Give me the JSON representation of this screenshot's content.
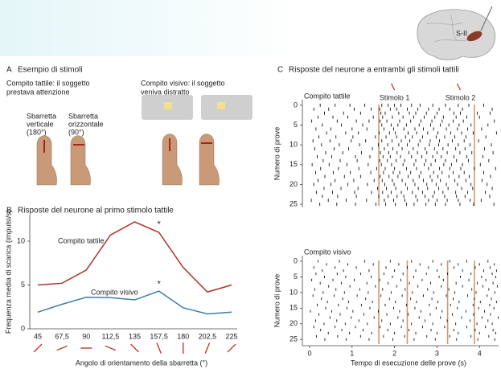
{
  "figure": {
    "panel_a": {
      "letter": "A",
      "title": "Esempio di stimoli",
      "tactile_task": [
        "Compito tattile: il soggetto",
        "prestava attenzione"
      ],
      "visual_task": [
        "Compito visivo: il soggetto",
        "veniva distratto"
      ],
      "vertical_bar": [
        "Sbarretta",
        "verticale",
        "(180°)"
      ],
      "horizontal_bar": [
        "Sbarretta",
        "orizzontale",
        "(90°)"
      ]
    },
    "panel_b": {
      "letter": "B",
      "title": "Risposte del neurone al primo stimolo tattile"
    },
    "panel_c": {
      "letter": "C",
      "title": "Risposte del neurone a entrambi gli stimoli tattili"
    },
    "brain_label": "S-II"
  },
  "chart_data": [
    {
      "type": "line",
      "xlabel": "Angolo di orientamento della sbarretta (°)",
      "ylabel": "Frequenza media di scarica (impulsi/s)",
      "categories": [
        "45",
        "67,5",
        "90",
        "112,5",
        "135",
        "157,5",
        "180",
        "202,5",
        "225"
      ],
      "series": [
        {
          "name": "Compito tattile",
          "color": "#a8332a",
          "values": [
            5,
            5.2,
            6.7,
            10.7,
            12.2,
            11,
            7,
            4.2,
            5
          ]
        },
        {
          "name": "Compito visivo",
          "color": "#3d7fa6",
          "values": [
            1.9,
            2.8,
            3.6,
            3.55,
            3.3,
            4.3,
            2.4,
            1.7,
            1.9
          ]
        }
      ],
      "ylim": [
        0,
        13
      ],
      "yticks": [
        0,
        5,
        10
      ],
      "annotations": [
        {
          "text": "*",
          "category": "157,5",
          "y": 11.9
        },
        {
          "text": "*",
          "category": "157,5",
          "y": 5.1
        }
      ]
    },
    {
      "type": "raster",
      "label": "Compito tattile",
      "ylabel": "Numero di prove",
      "xlim": [
        -0.17,
        4.45
      ],
      "ylim": [
        -1.4,
        25.8
      ],
      "yticks": [
        0,
        5,
        10,
        15,
        20,
        25
      ],
      "stimulus_lines": [
        1.63,
        3.88
      ],
      "annotations": [
        {
          "text": "Stimolo 1",
          "x": 2.0
        },
        {
          "text": "Stimolo 2",
          "x": 3.55
        }
      ],
      "trials": [
        [
          0.25,
          0.6,
          0.95,
          1.3,
          1.7,
          1.85,
          2.0,
          2.15,
          2.4,
          2.6,
          2.9,
          3.2,
          3.5,
          3.75,
          4.1
        ],
        [
          0.1,
          0.45,
          1.05,
          1.45,
          1.65,
          1.9,
          2.05,
          2.3,
          2.55,
          2.8,
          3.05,
          3.3,
          3.6,
          4.3
        ],
        [
          0.35,
          0.8,
          1.2,
          1.68,
          1.78,
          2.1,
          2.35,
          2.5,
          2.75,
          3.0,
          3.4,
          3.55,
          3.95,
          4.25
        ],
        [
          0.2,
          0.55,
          0.9,
          1.5,
          1.72,
          1.95,
          2.2,
          2.45,
          2.7,
          2.95,
          3.15,
          3.45,
          3.7,
          4.0
        ],
        [
          0.05,
          0.65,
          1.1,
          1.4,
          1.66,
          1.82,
          2.12,
          2.38,
          2.62,
          2.88,
          3.12,
          3.38,
          3.62,
          4.35
        ],
        [
          0.3,
          0.75,
          1.25,
          1.7,
          1.92,
          2.08,
          2.28,
          2.58,
          2.85,
          3.08,
          3.28,
          3.52,
          3.8,
          4.2
        ],
        [
          0.15,
          0.5,
          1.0,
          1.35,
          1.75,
          1.98,
          2.22,
          2.48,
          2.68,
          2.92,
          3.22,
          3.48,
          3.72,
          4.05
        ],
        [
          0.4,
          0.85,
          1.15,
          1.64,
          1.88,
          2.02,
          2.32,
          2.52,
          2.78,
          3.02,
          3.32,
          3.58,
          3.85,
          4.4
        ],
        [
          0.22,
          0.62,
          1.02,
          1.55,
          1.8,
          2.05,
          2.26,
          2.42,
          2.66,
          2.98,
          3.18,
          3.42,
          3.68,
          4.15
        ],
        [
          0.08,
          0.48,
          0.98,
          1.32,
          1.7,
          1.94,
          2.16,
          2.36,
          2.6,
          2.84,
          3.06,
          3.36,
          3.64,
          3.98
        ],
        [
          0.28,
          0.7,
          1.18,
          1.62,
          1.84,
          2.1,
          2.3,
          2.56,
          2.82,
          3.04,
          3.26,
          3.5,
          3.78,
          4.28
        ],
        [
          0.12,
          0.58,
          0.92,
          1.48,
          1.76,
          1.96,
          2.18,
          2.44,
          2.72,
          2.94,
          3.14,
          3.44,
          3.66,
          4.12
        ],
        [
          0.38,
          0.78,
          1.22,
          1.67,
          1.86,
          2.06,
          2.34,
          2.54,
          2.76,
          3.0,
          3.24,
          3.54,
          3.82,
          4.32
        ],
        [
          0.18,
          0.52,
          1.08,
          1.42,
          1.73,
          1.9,
          2.14,
          2.4,
          2.64,
          2.9,
          3.1,
          3.4,
          3.7,
          4.08
        ],
        [
          0.32,
          0.72,
          1.12,
          1.65,
          1.83,
          2.04,
          2.24,
          2.5,
          2.74,
          2.96,
          3.2,
          3.46,
          3.74,
          4.22
        ],
        [
          0.06,
          0.46,
          0.88,
          1.38,
          1.69,
          1.93,
          2.2,
          2.46,
          2.7,
          2.86,
          3.16,
          3.34,
          3.6,
          4.02
        ],
        [
          0.26,
          0.68,
          1.16,
          1.58,
          1.78,
          2.0,
          2.28,
          2.52,
          2.8,
          3.06,
          3.3,
          3.56,
          3.88,
          4.38
        ],
        [
          0.14,
          0.56,
          0.96,
          1.44,
          1.74,
          1.97,
          2.12,
          2.38,
          2.62,
          2.92,
          3.12,
          3.38,
          3.64,
          4.1
        ],
        [
          0.36,
          0.82,
          1.2,
          1.66,
          1.87,
          2.08,
          2.32,
          2.58,
          2.84,
          3.02,
          3.28,
          3.52,
          3.76,
          4.26
        ],
        [
          0.2,
          0.6,
          1.04,
          1.52,
          1.71,
          1.95,
          2.18,
          2.44,
          2.68,
          2.88,
          3.08,
          3.42,
          3.68,
          4.06
        ],
        [
          0.1,
          0.5,
          0.9,
          1.36,
          1.77,
          1.99,
          2.26,
          2.48,
          2.76,
          2.98,
          3.22,
          3.48,
          3.8,
          4.18
        ],
        [
          0.34,
          0.74,
          1.14,
          1.6,
          1.81,
          2.03,
          2.3,
          2.56,
          2.78,
          3.04,
          3.26,
          3.58,
          3.84,
          4.3
        ],
        [
          0.16,
          0.54,
          1.06,
          1.46,
          1.72,
          1.92,
          2.16,
          2.42,
          2.66,
          2.94,
          3.14,
          3.44,
          3.72,
          4.14
        ],
        [
          0.3,
          0.66,
          1.1,
          1.63,
          1.85,
          2.06,
          2.22,
          2.5,
          2.72,
          2.9,
          3.18,
          3.46,
          3.66,
          4.24
        ],
        [
          0.04,
          0.44,
          0.86,
          1.34,
          1.76,
          1.98,
          2.24,
          2.54,
          2.8,
          3.0,
          3.24,
          3.5,
          3.78,
          4.04
        ],
        [
          0.24,
          0.64,
          1.08,
          1.56,
          1.79,
          2.02,
          2.28,
          2.46,
          2.74,
          2.96,
          3.2,
          3.54,
          3.86,
          4.34
        ]
      ]
    },
    {
      "type": "raster",
      "label": "Compito visivo",
      "ylabel": "Numero di prove",
      "xlabel": "Tempo di esecuzione delle prove (s)",
      "xlim": [
        -0.17,
        4.45
      ],
      "ylim": [
        -1.8,
        27
      ],
      "yticks": [
        0,
        5,
        10,
        15,
        20,
        25
      ],
      "xticks": [
        0,
        1,
        2,
        3,
        4
      ],
      "stimulus_lines": [
        1.63,
        2.3,
        3.25,
        3.88
      ],
      "trials": [
        [
          0.2,
          0.7,
          1.3,
          1.9,
          2.4,
          2.9,
          3.3,
          3.7,
          4.2
        ],
        [
          0.4,
          0.9,
          1.5,
          2.1,
          2.6,
          3.1,
          3.5,
          4.0,
          4.35
        ],
        [
          0.1,
          0.6,
          1.1,
          1.8,
          2.3,
          2.8,
          3.4,
          3.9,
          4.25
        ],
        [
          0.3,
          0.8,
          1.4,
          2.0,
          2.5,
          3.0,
          3.6,
          4.1,
          4.4
        ],
        [
          0.15,
          0.65,
          1.2,
          1.75,
          2.2,
          2.75,
          3.25,
          3.8,
          4.3
        ],
        [
          0.35,
          0.85,
          1.45,
          1.95,
          2.45,
          3.05,
          3.55,
          4.05,
          4.38
        ],
        [
          0.05,
          0.55,
          1.05,
          1.65,
          2.15,
          2.65,
          3.15,
          3.75,
          4.15
        ],
        [
          0.25,
          0.75,
          1.35,
          1.85,
          2.35,
          2.85,
          3.45,
          3.95,
          4.32
        ],
        [
          0.45,
          0.95,
          1.55,
          2.05,
          2.55,
          3.1,
          3.6,
          4.08,
          4.42
        ],
        [
          0.12,
          0.62,
          1.18,
          1.72,
          2.25,
          2.78,
          3.28,
          3.82,
          4.22
        ],
        [
          0.32,
          0.82,
          1.38,
          1.92,
          2.42,
          2.92,
          3.42,
          3.92,
          4.36
        ],
        [
          0.08,
          0.58,
          1.12,
          1.68,
          2.18,
          2.68,
          3.22,
          3.72,
          4.18
        ],
        [
          0.28,
          0.78,
          1.32,
          1.88,
          2.38,
          2.88,
          3.38,
          3.88,
          4.28
        ],
        [
          0.42,
          0.92,
          1.48,
          2.02,
          2.52,
          3.02,
          3.52,
          4.02,
          4.4
        ],
        [
          0.18,
          0.68,
          1.22,
          1.78,
          2.28,
          2.82,
          3.32,
          3.85,
          4.24
        ],
        [
          0.38,
          0.88,
          1.42,
          1.98,
          2.48,
          2.98,
          3.48,
          3.98,
          4.34
        ],
        [
          0.02,
          0.52,
          1.02,
          1.62,
          2.12,
          2.62,
          3.12,
          3.68,
          4.12
        ],
        [
          0.22,
          0.72,
          1.28,
          1.82,
          2.32,
          2.84,
          3.36,
          3.86,
          4.26
        ],
        [
          0.48,
          0.98,
          1.52,
          2.08,
          2.58,
          3.08,
          3.58,
          4.06,
          4.44
        ],
        [
          0.14,
          0.64,
          1.16,
          1.7,
          2.2,
          2.72,
          3.24,
          3.78,
          4.2
        ],
        [
          0.34,
          0.84,
          1.36,
          1.9,
          2.4,
          2.9,
          3.44,
          3.94,
          4.3
        ],
        [
          0.1,
          0.6,
          1.08,
          1.66,
          2.16,
          2.66,
          3.18,
          3.7,
          4.14
        ],
        [
          0.26,
          0.76,
          1.26,
          1.84,
          2.34,
          2.86,
          3.4,
          3.9,
          4.32
        ],
        [
          0.44,
          0.94,
          1.46,
          2.0,
          2.5,
          3.0,
          3.5,
          4.0,
          4.38
        ],
        [
          0.16,
          0.66,
          1.2,
          1.74,
          2.24,
          2.76,
          3.3,
          3.8,
          4.22
        ],
        [
          0.36,
          0.86,
          1.4,
          1.96,
          2.46,
          2.96,
          3.46,
          3.96,
          4.36
        ]
      ]
    }
  ]
}
